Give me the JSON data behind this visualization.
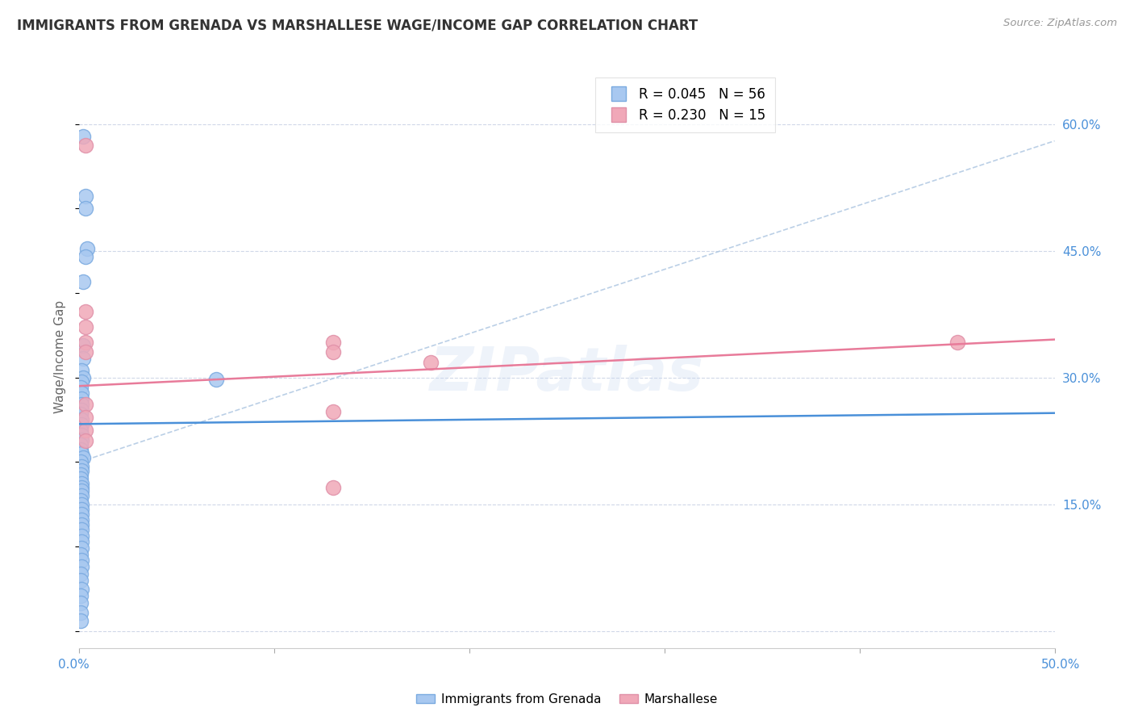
{
  "title": "IMMIGRANTS FROM GRENADA VS MARSHALLESE WAGE/INCOME GAP CORRELATION CHART",
  "source": "Source: ZipAtlas.com",
  "ylabel": "Wage/Income Gap",
  "xlim": [
    0.0,
    0.5
  ],
  "ylim": [
    -0.02,
    0.67
  ],
  "yticks": [
    0.0,
    0.15,
    0.3,
    0.45,
    0.6
  ],
  "ytick_labels": [
    "",
    "15.0%",
    "30.0%",
    "45.0%",
    "60.0%"
  ],
  "watermark": "ZIPatlas",
  "grenada_points": [
    [
      0.002,
      0.585
    ],
    [
      0.003,
      0.515
    ],
    [
      0.003,
      0.5
    ],
    [
      0.004,
      0.453
    ],
    [
      0.003,
      0.443
    ],
    [
      0.002,
      0.413
    ],
    [
      0.002,
      0.338
    ],
    [
      0.002,
      0.323
    ],
    [
      0.001,
      0.308
    ],
    [
      0.002,
      0.3
    ],
    [
      0.001,
      0.295
    ],
    [
      0.0005,
      0.288
    ],
    [
      0.001,
      0.282
    ],
    [
      0.001,
      0.275
    ],
    [
      0.001,
      0.268
    ],
    [
      0.001,
      0.262
    ],
    [
      0.0005,
      0.257
    ],
    [
      0.001,
      0.25
    ],
    [
      0.001,
      0.244
    ],
    [
      0.0005,
      0.238
    ],
    [
      0.001,
      0.232
    ],
    [
      0.001,
      0.226
    ],
    [
      0.0005,
      0.22
    ],
    [
      0.0005,
      0.215
    ],
    [
      0.001,
      0.21
    ],
    [
      0.002,
      0.205
    ],
    [
      0.0005,
      0.2
    ],
    [
      0.001,
      0.195
    ],
    [
      0.001,
      0.19
    ],
    [
      0.0005,
      0.185
    ],
    [
      0.0005,
      0.18
    ],
    [
      0.001,
      0.175
    ],
    [
      0.001,
      0.17
    ],
    [
      0.001,
      0.166
    ],
    [
      0.001,
      0.16
    ],
    [
      0.0005,
      0.155
    ],
    [
      0.001,
      0.15
    ],
    [
      0.001,
      0.144
    ],
    [
      0.001,
      0.138
    ],
    [
      0.001,
      0.132
    ],
    [
      0.001,
      0.126
    ],
    [
      0.001,
      0.12
    ],
    [
      0.001,
      0.113
    ],
    [
      0.001,
      0.106
    ],
    [
      0.001,
      0.098
    ],
    [
      0.0005,
      0.091
    ],
    [
      0.001,
      0.084
    ],
    [
      0.001,
      0.076
    ],
    [
      0.0005,
      0.068
    ],
    [
      0.0005,
      0.06
    ],
    [
      0.001,
      0.05
    ],
    [
      0.0005,
      0.042
    ],
    [
      0.0005,
      0.033
    ],
    [
      0.0005,
      0.022
    ],
    [
      0.0005,
      0.012
    ],
    [
      0.07,
      0.298
    ]
  ],
  "marshallese_points": [
    [
      0.003,
      0.575
    ],
    [
      0.003,
      0.378
    ],
    [
      0.003,
      0.36
    ],
    [
      0.003,
      0.342
    ],
    [
      0.003,
      0.33
    ],
    [
      0.003,
      0.268
    ],
    [
      0.003,
      0.253
    ],
    [
      0.003,
      0.238
    ],
    [
      0.003,
      0.225
    ],
    [
      0.13,
      0.342
    ],
    [
      0.13,
      0.33
    ],
    [
      0.13,
      0.26
    ],
    [
      0.13,
      0.17
    ],
    [
      0.45,
      0.342
    ],
    [
      0.18,
      0.318
    ]
  ],
  "grenada_line": [
    0.0,
    0.245,
    0.5,
    0.258
  ],
  "marshallese_line": [
    0.0,
    0.29,
    0.5,
    0.345
  ],
  "dashed_line": [
    0.0,
    0.2,
    0.5,
    0.58
  ],
  "grenada_line_color": "#4a90d9",
  "marshallese_line_color": "#e87b9a",
  "dashed_line_color": "#aac4e0",
  "dot_color_grenada": "#a8c8f0",
  "dot_color_marshallese": "#f0a8b8",
  "dot_edge_grenada": "#7aaae0",
  "dot_edge_marshallese": "#e090a8",
  "background_color": "#ffffff",
  "grid_color": "#d0d8e8",
  "title_color": "#333333",
  "axis_label_color": "#4a90d9",
  "right_ytick_color": "#4a90d9"
}
